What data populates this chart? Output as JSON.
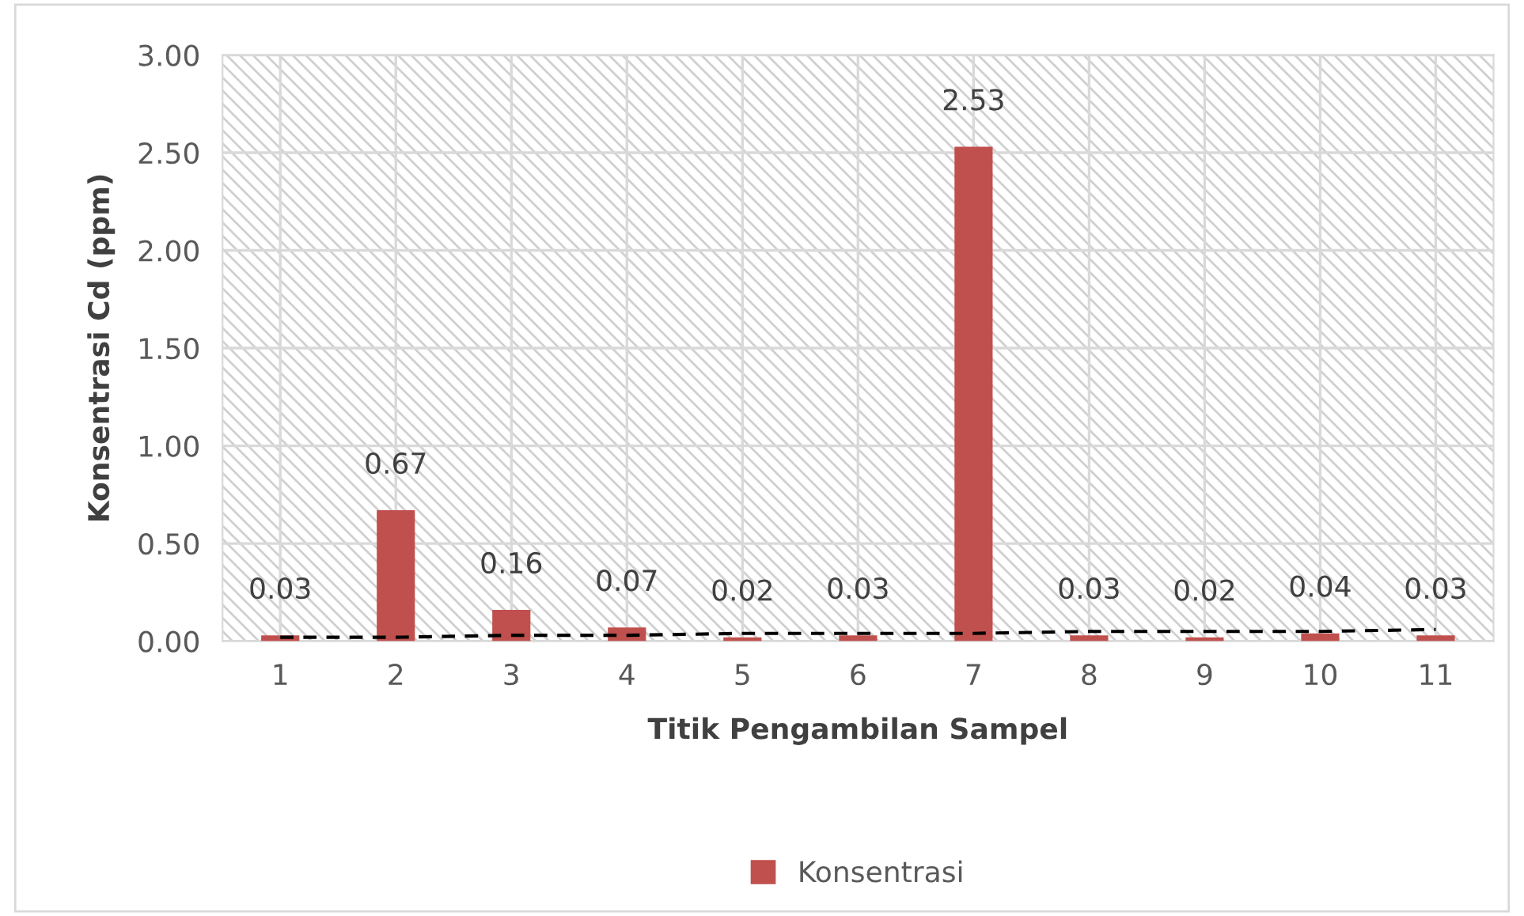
{
  "chart_data": {
    "type": "bar",
    "xlabel": "Titik Pengambilan Sampel",
    "ylabel": "Konsentrasi Cd (ppm)",
    "categories": [
      "1",
      "2",
      "3",
      "4",
      "5",
      "6",
      "7",
      "8",
      "9",
      "10",
      "11"
    ],
    "series": [
      {
        "name": "Konsentrasi",
        "color": "#c0504d",
        "values": [
          0.03,
          0.67,
          0.16,
          0.07,
          0.02,
          0.03,
          2.53,
          0.03,
          0.02,
          0.04,
          0.03
        ],
        "value_labels": [
          "0.03",
          "0.67",
          "0.16",
          "0.07",
          "0.02",
          "0.03",
          "2.53",
          "0.03",
          "0.02",
          "0.04",
          "0.03"
        ]
      },
      {
        "type": "line",
        "color": "#000000",
        "line_style": "dashed",
        "values": [
          0.02,
          0.02,
          0.03,
          0.03,
          0.04,
          0.04,
          0.04,
          0.05,
          0.05,
          0.05,
          0.06
        ]
      }
    ],
    "ylim": [
      0,
      3
    ],
    "yticks": [
      "0.00",
      "0.50",
      "1.00",
      "1.50",
      "2.00",
      "2.50",
      "3.00"
    ],
    "grid": true,
    "legend": "bottom"
  }
}
